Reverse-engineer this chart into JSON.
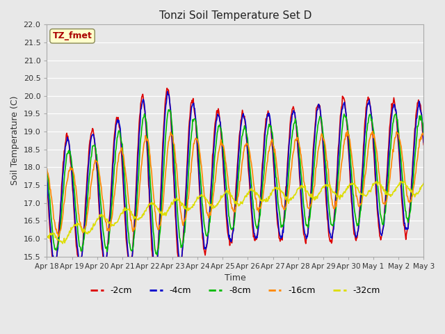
{
  "title": "Tonzi Soil Temperature Set D",
  "xlabel": "Time",
  "ylabel": "Soil Temperature (C)",
  "ylim": [
    15.5,
    22.0
  ],
  "yticks": [
    15.5,
    16.0,
    16.5,
    17.0,
    17.5,
    18.0,
    18.5,
    19.0,
    19.5,
    20.0,
    20.5,
    21.0,
    21.5,
    22.0
  ],
  "background_color": "#e8e8e8",
  "legend_label": "TZ_fmet",
  "series": {
    "-2cm": {
      "color": "#dd0000",
      "lw": 1.2
    },
    "-4cm": {
      "color": "#0000cc",
      "lw": 1.2
    },
    "-8cm": {
      "color": "#00bb00",
      "lw": 1.2
    },
    "-16cm": {
      "color": "#ff8800",
      "lw": 1.2
    },
    "-32cm": {
      "color": "#dddd00",
      "lw": 1.2
    }
  },
  "x_ticks": [
    "Apr 18",
    "Apr 19",
    "Apr 20",
    "Apr 21",
    "Apr 22",
    "Apr 23",
    "Apr 24",
    "Apr 25",
    "Apr 26",
    "Apr 27",
    "Apr 28",
    "Apr 29",
    "Apr 30",
    "May 1",
    "May 2",
    "May 3"
  ]
}
